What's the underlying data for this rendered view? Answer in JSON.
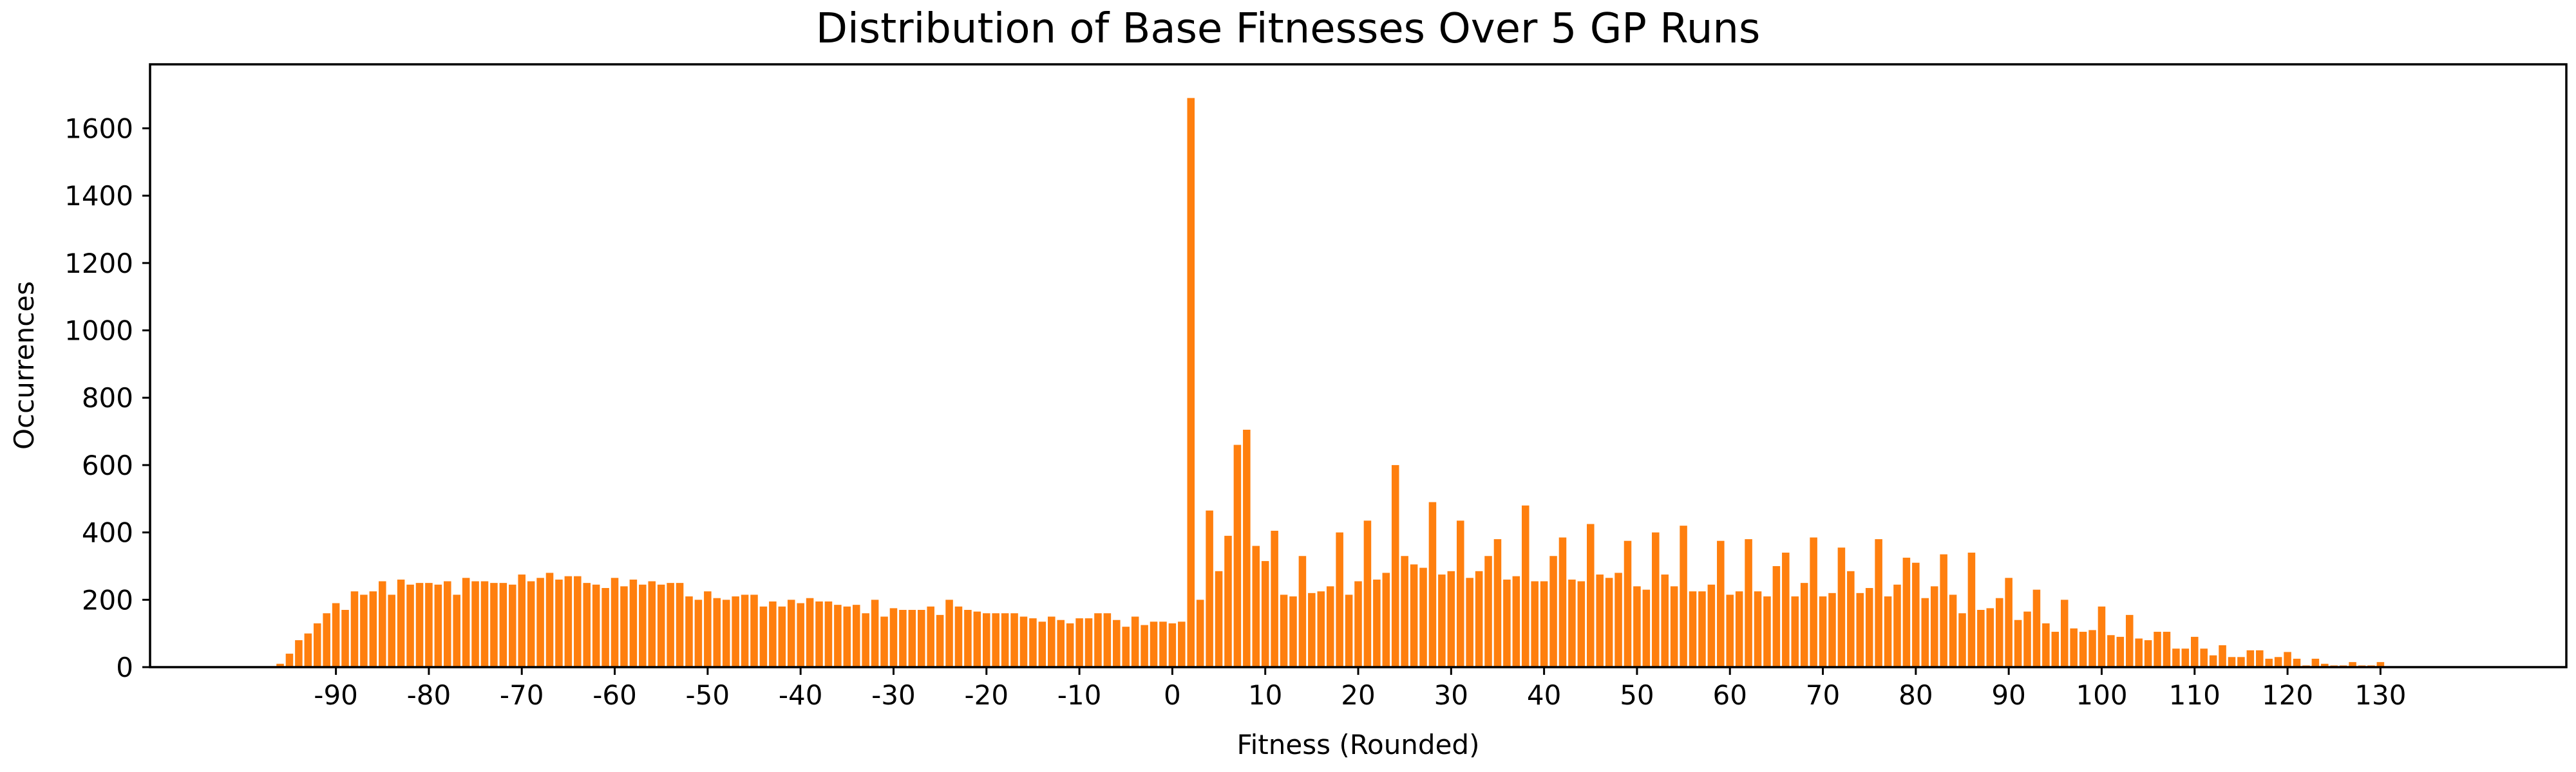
{
  "chart_data": {
    "type": "bar",
    "title": "Distribution of Base Fitnesses Over 5 GP Runs",
    "xlabel": "Fitness (Rounded)",
    "ylabel": "Occurrences",
    "xlim": [
      -110,
      150
    ],
    "ylim": [
      0,
      1790
    ],
    "xticks": [
      -90,
      -80,
      -70,
      -60,
      -50,
      -40,
      -30,
      -20,
      -10,
      0,
      10,
      20,
      30,
      40,
      50,
      60,
      70,
      80,
      90,
      100,
      110,
      120,
      130
    ],
    "yticks": [
      0,
      200,
      400,
      600,
      800,
      1000,
      1200,
      1400,
      1600
    ],
    "grid": false,
    "bar_color": "#ff7f0e",
    "x_start": -96,
    "values": [
      10,
      40,
      80,
      100,
      130,
      160,
      190,
      170,
      225,
      215,
      225,
      255,
      215,
      260,
      245,
      250,
      250,
      245,
      255,
      215,
      265,
      255,
      255,
      250,
      250,
      245,
      275,
      255,
      265,
      280,
      260,
      270,
      270,
      250,
      245,
      235,
      265,
      240,
      260,
      245,
      255,
      245,
      250,
      250,
      210,
      200,
      225,
      205,
      200,
      210,
      215,
      215,
      180,
      195,
      180,
      200,
      190,
      205,
      195,
      195,
      185,
      180,
      185,
      160,
      200,
      150,
      175,
      170,
      170,
      170,
      180,
      155,
      200,
      180,
      170,
      165,
      160,
      160,
      160,
      160,
      150,
      145,
      135,
      150,
      140,
      130,
      145,
      145,
      160,
      160,
      140,
      120,
      150,
      125,
      135,
      135,
      130,
      135,
      1690,
      200,
      465,
      285,
      390,
      660,
      705,
      360,
      315,
      405,
      215,
      210,
      330,
      220,
      225,
      240,
      400,
      215,
      255,
      435,
      260,
      280,
      600,
      330,
      305,
      295,
      490,
      275,
      285,
      435,
      265,
      285,
      330,
      380,
      260,
      270,
      480,
      255,
      255,
      330,
      385,
      260,
      255,
      425,
      275,
      265,
      280,
      375,
      240,
      230,
      400,
      275,
      240,
      420,
      225,
      225,
      245,
      375,
      215,
      225,
      380,
      225,
      210,
      300,
      340,
      210,
      250,
      385,
      210,
      220,
      355,
      285,
      220,
      235,
      380,
      210,
      245,
      325,
      310,
      205,
      240,
      335,
      215,
      160,
      340,
      170,
      175,
      205,
      265,
      140,
      165,
      230,
      130,
      105,
      200,
      115,
      105,
      110,
      180,
      95,
      90,
      155,
      85,
      80,
      105,
      105,
      55,
      55,
      90,
      55,
      35,
      65,
      30,
      30,
      50,
      50,
      25,
      30,
      45,
      25,
      5,
      25,
      10,
      5,
      5,
      15,
      5,
      5,
      15
    ]
  }
}
